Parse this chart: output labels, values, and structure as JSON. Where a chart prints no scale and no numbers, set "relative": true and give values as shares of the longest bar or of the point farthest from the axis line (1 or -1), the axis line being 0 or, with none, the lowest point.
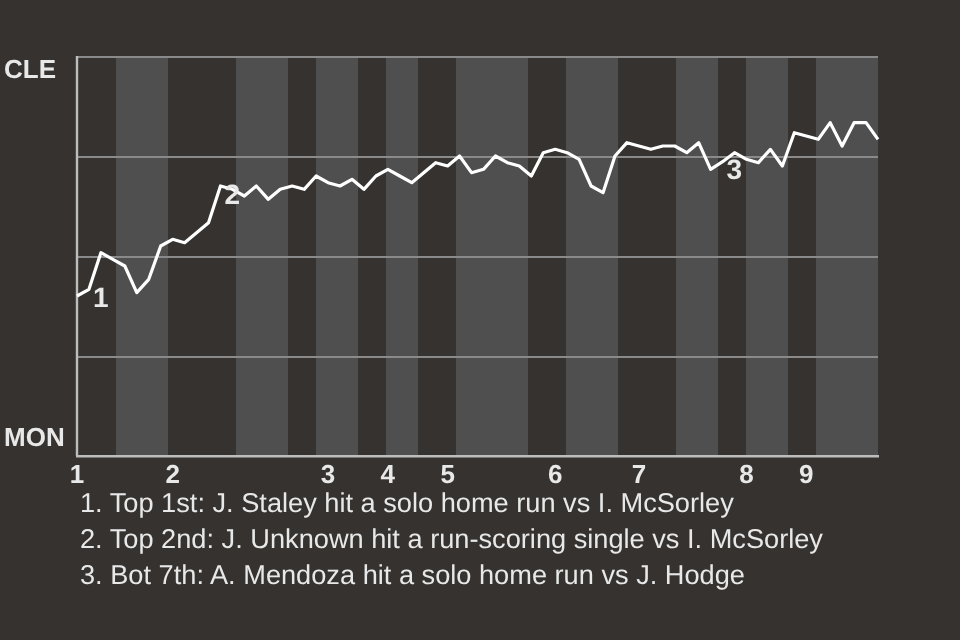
{
  "chart_data": {
    "type": "line",
    "relative": true,
    "categories": [
      "1",
      null,
      null,
      null,
      null,
      null,
      null,
      null,
      "2",
      null,
      null,
      null,
      null,
      null,
      null,
      null,
      null,
      null,
      null,
      null,
      null,
      "3",
      null,
      null,
      null,
      null,
      "4",
      null,
      null,
      null,
      null,
      "5",
      null,
      null,
      null,
      null,
      null,
      null,
      null,
      null,
      "6",
      null,
      null,
      null,
      null,
      null,
      null,
      "7",
      null,
      null,
      null,
      null,
      null,
      null,
      null,
      null,
      "8",
      null,
      null,
      null,
      null,
      "9",
      null,
      null,
      null,
      null,
      null,
      null
    ],
    "series": [
      {
        "color": "#ffffff",
        "values": [
          0.48,
          0.5,
          0.61,
          0.59,
          0.57,
          0.49,
          0.53,
          0.63,
          0.65,
          0.64,
          0.67,
          0.7,
          0.81,
          0.8,
          0.78,
          0.81,
          0.77,
          0.8,
          0.81,
          0.8,
          0.84,
          0.82,
          0.81,
          0.83,
          0.8,
          0.84,
          0.86,
          0.84,
          0.82,
          0.85,
          0.88,
          0.87,
          0.9,
          0.85,
          0.86,
          0.9,
          0.88,
          0.87,
          0.84,
          0.91,
          0.92,
          0.91,
          0.89,
          0.81,
          0.79,
          0.9,
          0.94,
          0.93,
          0.92,
          0.93,
          0.93,
          0.91,
          0.94,
          0.86,
          0.883,
          0.91,
          0.89,
          0.88,
          0.92,
          0.87,
          0.97,
          0.96,
          0.95,
          1.0,
          0.93,
          1,
          1,
          0.95
        ]
      }
    ],
    "grid": "y",
    "legend": false,
    "marker": "none",
    "line_style": "solid",
    "annotations": [
      "CLE",
      "MON",
      {
        "text": "1",
        "y": 0.5
      },
      {
        "text": "2",
        "y": 0.81
      },
      {
        "text": "3",
        "y": 0.883
      },
      "1. Top 1st: J. Staley hit a solo home run vs I. McSorley",
      "2. Top 2nd: J. Unknown hit a run-scoring single vs I. McSorley",
      "3. Bot 7th: A. Mendoza hit a solo home run vs J. Hodge"
    ]
  }
}
